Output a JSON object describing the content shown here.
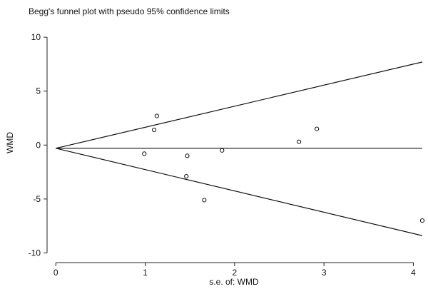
{
  "chart_data": {
    "type": "scatter",
    "title": "Begg's funnel plot with pseudo 95% confidence limits",
    "xlabel": "s.e. of: WMD",
    "ylabel": "WMD",
    "xlim": [
      -0.05,
      4.1
    ],
    "ylim": [
      -10.5,
      11
    ],
    "x_ticks": [
      0,
      1,
      2,
      3,
      4
    ],
    "y_ticks": [
      -10,
      -5,
      0,
      5,
      10
    ],
    "grid": false,
    "legend": "none",
    "points": [
      {
        "x": 0.99,
        "y": -0.8
      },
      {
        "x": 1.1,
        "y": 1.4
      },
      {
        "x": 1.13,
        "y": 2.7
      },
      {
        "x": 1.46,
        "y": -2.9
      },
      {
        "x": 1.47,
        "y": -1.0
      },
      {
        "x": 1.66,
        "y": -5.1
      },
      {
        "x": 1.86,
        "y": -0.5
      },
      {
        "x": 2.72,
        "y": 0.3
      },
      {
        "x": 2.92,
        "y": 1.5
      },
      {
        "x": 4.1,
        "y": -7.0
      }
    ],
    "pooled_estimate": -0.3,
    "upper_limit": [
      {
        "x": 0,
        "y": -0.3
      },
      {
        "x": 4.1,
        "y": 7.7
      }
    ],
    "lower_limit": [
      {
        "x": 0,
        "y": -0.3
      },
      {
        "x": 4.1,
        "y": -8.4
      }
    ]
  }
}
